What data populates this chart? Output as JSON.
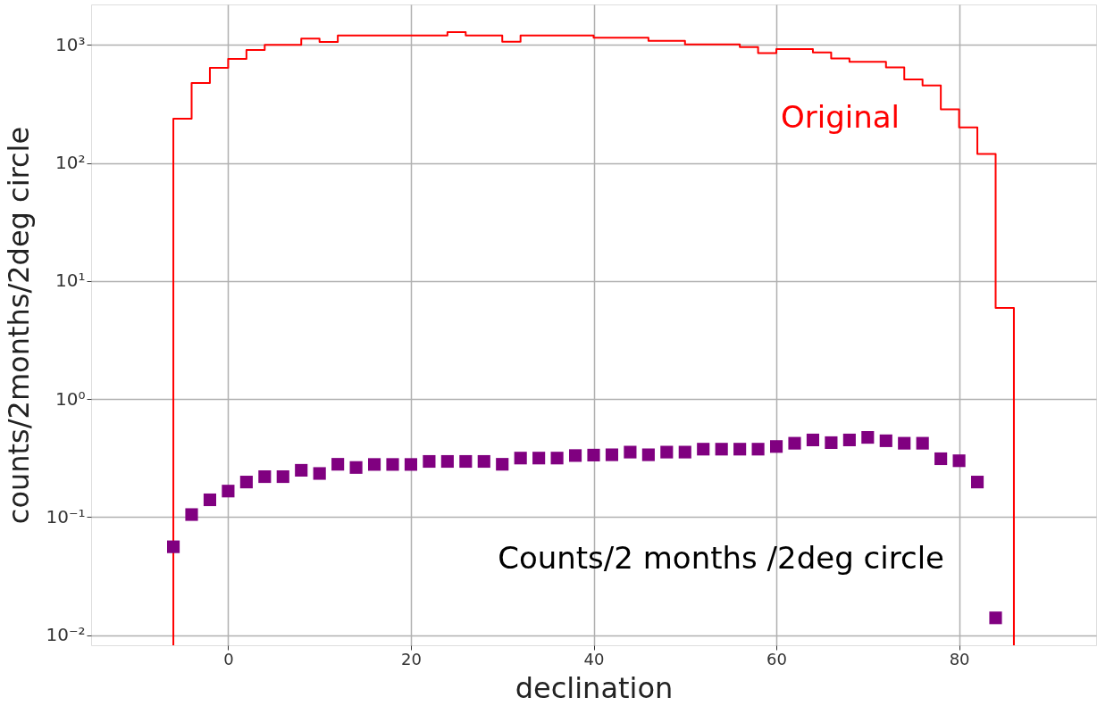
{
  "chart_data": {
    "type": "scatter",
    "xlabel": "declination",
    "ylabel": "counts/2months/2deg circle",
    "log": "y",
    "grid": true,
    "legend": false,
    "xlim": [
      -15,
      95
    ],
    "xticks": [
      0,
      20,
      40,
      60,
      80
    ],
    "ylim": [
      0.0082,
      2200
    ],
    "yticks": [
      {
        "value": 0.01,
        "label": "10⁻²"
      },
      {
        "value": 0.1,
        "label": "10⁻¹"
      },
      {
        "value": 1,
        "label": "10⁰"
      },
      {
        "value": 10,
        "label": "10¹"
      },
      {
        "value": 100,
        "label": "10²"
      },
      {
        "value": 1000,
        "label": "10³"
      }
    ],
    "series": [
      {
        "type": "histogram",
        "name": "Original",
        "color": "#ff0000",
        "bins": [
          -6,
          -4,
          -2,
          0,
          2,
          4,
          6,
          8,
          10,
          12,
          14,
          16,
          18,
          20,
          22,
          24,
          26,
          28,
          30,
          32,
          34,
          36,
          38,
          40,
          42,
          44,
          46,
          48,
          50,
          52,
          54,
          56,
          58,
          60,
          62,
          64,
          66,
          68,
          70,
          72,
          74,
          76,
          78,
          80,
          82,
          84,
          86
        ],
        "values": [
          237,
          475,
          640,
          762,
          905,
          1000,
          1000,
          1130,
          1060,
          1200,
          1200,
          1200,
          1200,
          1200,
          1200,
          1280,
          1200,
          1200,
          1065,
          1200,
          1200,
          1200,
          1200,
          1150,
          1150,
          1150,
          1080,
          1080,
          1010,
          1010,
          1010,
          960,
          851,
          920,
          920,
          862,
          768,
          720,
          720,
          646,
          509,
          453,
          285,
          200,
          119,
          5.9
        ]
      },
      {
        "name": "Counts/2 months /2deg circle",
        "color": "#800080",
        "marker": "square",
        "x": [
          -6,
          -4,
          -2,
          0,
          2,
          4,
          6,
          8,
          10,
          12,
          14,
          16,
          18,
          20,
          22,
          24,
          26,
          28,
          30,
          32,
          34,
          36,
          38,
          40,
          42,
          44,
          46,
          48,
          50,
          52,
          54,
          56,
          58,
          60,
          62,
          64,
          66,
          68,
          70,
          72,
          74,
          76,
          78,
          80,
          82,
          84
        ],
        "values": [
          0.056,
          0.105,
          0.14,
          0.166,
          0.198,
          0.22,
          0.22,
          0.249,
          0.234,
          0.28,
          0.263,
          0.279,
          0.279,
          0.279,
          0.296,
          0.296,
          0.296,
          0.296,
          0.28,
          0.316,
          0.316,
          0.316,
          0.332,
          0.335,
          0.337,
          0.355,
          0.337,
          0.355,
          0.355,
          0.376,
          0.376,
          0.376,
          0.376,
          0.396,
          0.422,
          0.45,
          0.427,
          0.45,
          0.473,
          0.443,
          0.422,
          0.422,
          0.312,
          0.3,
          0.198,
          0.014
        ]
      }
    ]
  }
}
